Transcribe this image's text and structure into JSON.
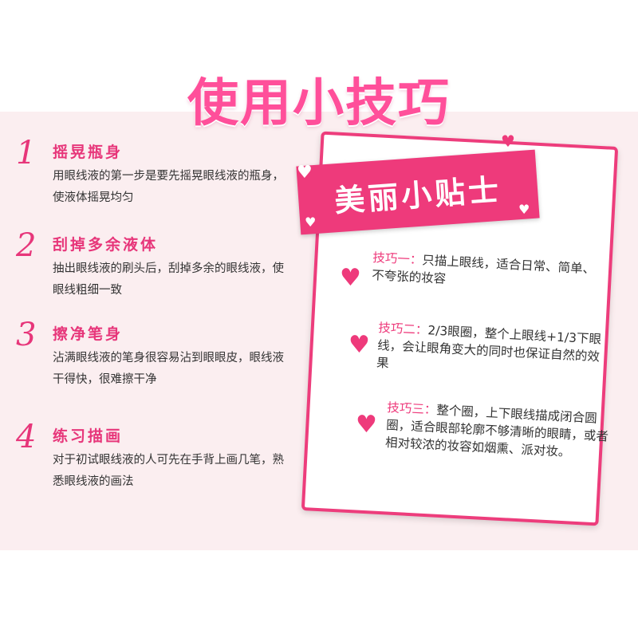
{
  "header": {
    "title": "使用小技巧"
  },
  "steps": [
    {
      "number": "1",
      "title": "摇晃瓶身",
      "desc": "用眼线液的第一步是要先摇晃眼线液的瓶身，使液体摇晃均匀"
    },
    {
      "number": "2",
      "title": "刮掉多余液体",
      "desc": "抽出眼线液的刷头后，刮掉多余的眼线液，使眼线粗细一致"
    },
    {
      "number": "3",
      "title": "擦净笔身",
      "desc": "沾满眼线液的笔身很容易沾到眼眼皮，眼线液干得快，很难擦干净"
    },
    {
      "number": "4",
      "title": "练习描画",
      "desc": "对于初试眼线液的人可先在手背上画几笔，熟悉眼线液的画法"
    }
  ],
  "tips_card": {
    "banner": "美丽小贴士",
    "tips": [
      {
        "label": "技巧一：",
        "text": "只描上眼线，适合日常、简单、不夸张的妆容"
      },
      {
        "label": "技巧二：",
        "text": "2/3眼圈，整个上眼线+1/3下眼线，会让眼角变大的同时也保证自然的效果"
      },
      {
        "label": "技巧三：",
        "text": "整个圈，上下眼线描成闭合圆圈，适合眼部轮廓不够清晰的眼睛，或者相对较浓的妆容如烟熏、派对妆。"
      }
    ]
  },
  "colors": {
    "accent": "#ee3a7b",
    "title": "#ff4f9a",
    "panel_bg": "#fbeef0"
  },
  "icons": {
    "heart": "heart-icon"
  }
}
